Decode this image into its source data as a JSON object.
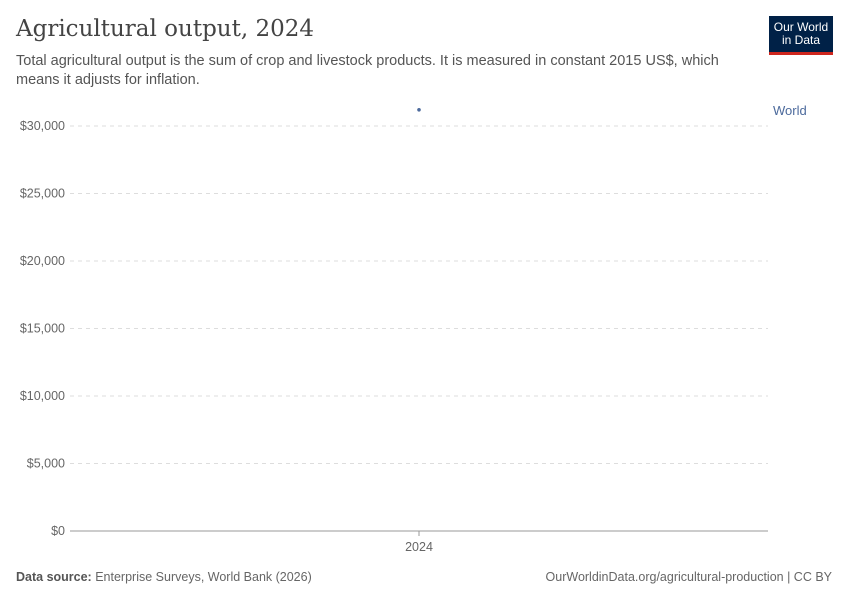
{
  "title": "Agricultural output, 2024",
  "subtitle": "Total agricultural output is the sum of crop and livestock products. It is measured in constant 2015 US$, which means it adjusts for inflation.",
  "logo": {
    "line1": "Our World",
    "line2": "in Data"
  },
  "footer": {
    "source_label": "Data source:",
    "source": "Enterprise Surveys, World Bank (2026)",
    "url": "OurWorldinData.org/agricultural-production | CC BY"
  },
  "colors": {
    "series": "#4c6a9c",
    "grid": "#ddd",
    "logo_bg": "#002147",
    "logo_accent": "#ce261e"
  },
  "chart_data": {
    "type": "scatter",
    "title": "Agricultural output, 2024",
    "x_ticks": [
      "2024"
    ],
    "y_ticks": [
      "$0",
      "$5,000",
      "$10,000",
      "$15,000",
      "$20,000",
      "$25,000",
      "$30,000"
    ],
    "y_tick_values": [
      0,
      5000,
      10000,
      15000,
      20000,
      25000,
      30000
    ],
    "ylim": [
      0,
      30000
    ],
    "grid": "horizontal dashed",
    "series": [
      {
        "name": "World",
        "points": [
          {
            "x": "2024",
            "y": 31200
          }
        ]
      }
    ]
  }
}
